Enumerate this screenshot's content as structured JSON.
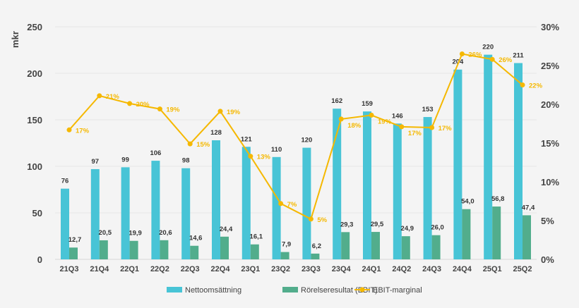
{
  "chart_data": {
    "type": "bar",
    "ylabel": "mkr",
    "ylim": [
      0,
      250
    ],
    "yticks": [
      "0",
      "50",
      "100",
      "150",
      "200",
      "250"
    ],
    "y2lim": [
      0,
      30
    ],
    "y2ticks": [
      "0%",
      "5%",
      "10%",
      "15%",
      "20%",
      "25%",
      "30%"
    ],
    "grid": true,
    "legend_position": "bottom",
    "categories": [
      "21Q3",
      "21Q4",
      "22Q1",
      "22Q2",
      "22Q3",
      "22Q4",
      "23Q1",
      "23Q2",
      "23Q3",
      "23Q4",
      "24Q1",
      "24Q2",
      "24Q3",
      "24Q4",
      "25Q1",
      "25Q2"
    ],
    "series": [
      {
        "name": "Nettoomsättning",
        "type": "bar",
        "color": "#48c4d6",
        "values": [
          76,
          97,
          99,
          106,
          98,
          128,
          121,
          110,
          120,
          162,
          159,
          146,
          153,
          204,
          220,
          211
        ],
        "labels": [
          "76",
          "97",
          "99",
          "106",
          "98",
          "128",
          "121",
          "110",
          "120",
          "162",
          "159",
          "146",
          "153",
          "204",
          "220",
          "211"
        ]
      },
      {
        "name": "Rörelseresultat (EBIT)",
        "type": "bar",
        "color": "#52ad8c",
        "values": [
          12.7,
          20.5,
          19.9,
          20.6,
          14.6,
          24.4,
          16.1,
          7.9,
          6.2,
          29.3,
          29.5,
          24.9,
          26.0,
          54.0,
          56.8,
          47.4
        ],
        "labels": [
          "12,7",
          "20,5",
          "19,9",
          "20,6",
          "14,6",
          "24,4",
          "16,1",
          "7,9",
          "6,2",
          "29,3",
          "29,5",
          "24,9",
          "26,0",
          "54,0",
          "56,8",
          "47,4"
        ]
      },
      {
        "name": "EBIT-marginal",
        "type": "line",
        "axis": "right",
        "color": "#f5b800",
        "values": [
          16.7,
          21.1,
          20.1,
          19.4,
          14.9,
          19.1,
          13.3,
          7.2,
          5.2,
          18.1,
          18.6,
          17.1,
          17.0,
          26.5,
          25.8,
          22.5
        ],
        "labels": [
          "17%",
          "21%",
          "20%",
          "19%",
          "15%",
          "19%",
          "13%",
          "7%",
          "5%",
          "18%",
          "19%",
          "17%",
          "17%",
          "26%",
          "26%",
          "22%"
        ]
      }
    ]
  }
}
